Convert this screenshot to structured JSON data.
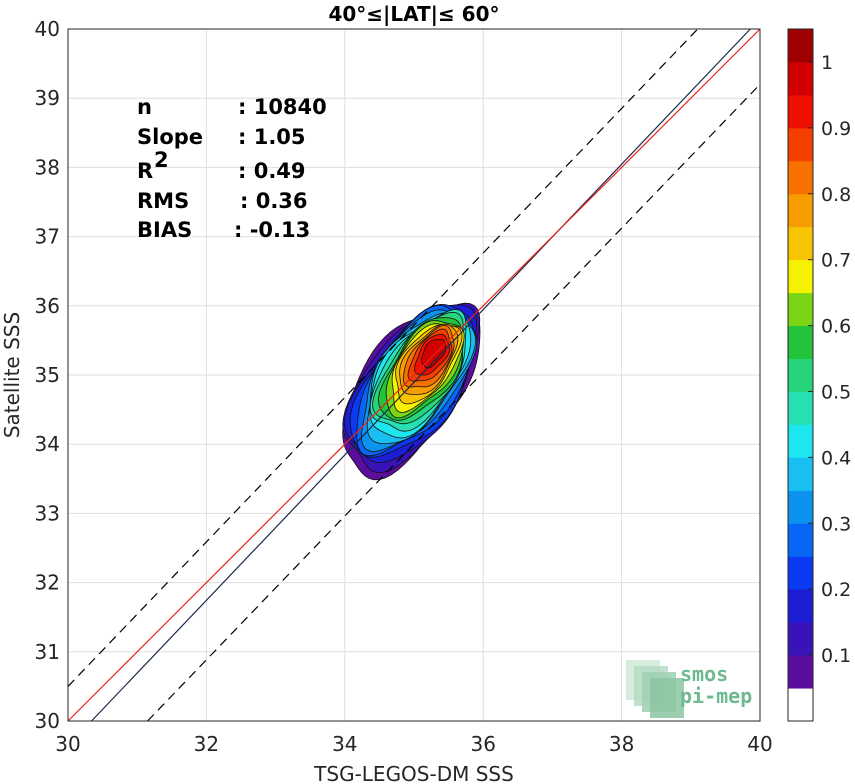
{
  "chart_data": {
    "type": "contour-scatter",
    "title": "40°≤|LAT|≤ 60°",
    "xlabel": "TSG-LEGOS-DM SSS",
    "ylabel": "Satellite SSS",
    "xlim": [
      30,
      40
    ],
    "ylim": [
      30,
      40
    ],
    "xticks": [
      "30",
      "32",
      "34",
      "36",
      "38",
      "40"
    ],
    "yticks": [
      "30",
      "31",
      "32",
      "33",
      "34",
      "35",
      "36",
      "37",
      "38",
      "39",
      "40"
    ],
    "grid": true,
    "stats": [
      {
        "label": "n",
        "sep": ":",
        "value": "10840"
      },
      {
        "label": "Slope",
        "sep": ":",
        "value": "1.05"
      },
      {
        "label": "R",
        "sup": "2",
        "sep": ":",
        "value": "0.49"
      },
      {
        "label": "RMS",
        "sep": ":",
        "value": "0.36"
      },
      {
        "label": "BIAS",
        "sep": ":",
        "value": "-0.13"
      }
    ],
    "lines": {
      "identity": {
        "color": "#e8221d",
        "points": [
          [
            30,
            30
          ],
          [
            40,
            40
          ]
        ]
      },
      "regression": {
        "color": "#1a2a4a",
        "slope": 1.05,
        "points": [
          [
            30.34,
            30
          ],
          [
            39.86,
            40
          ]
        ]
      },
      "bounds": {
        "color": "#000000",
        "dash": true,
        "offset": 0.8,
        "upper": [
          [
            30,
            30.5
          ],
          [
            39.1,
            40
          ]
        ],
        "lower": [
          [
            31.15,
            30
          ],
          [
            40,
            39.2
          ]
        ]
      }
    },
    "density": {
      "peak": [
        35.3,
        35.35
      ],
      "levels": [
        0.05,
        0.1,
        0.15,
        0.2,
        0.25,
        0.3,
        0.35,
        0.4,
        0.45,
        0.5,
        0.55,
        0.6,
        0.65,
        0.7,
        0.75,
        0.8,
        0.85,
        0.9,
        0.95
      ]
    },
    "colorbar": {
      "ticks": [
        "0.1",
        "0.2",
        "0.3",
        "0.4",
        "0.5",
        "0.6",
        "0.7",
        "0.8",
        "0.9",
        "1"
      ],
      "colors": [
        "#ffffff",
        "#5b0e9e",
        "#3a13b8",
        "#1d1dd4",
        "#0a3bf2",
        "#0766f5",
        "#0c93f0",
        "#19bff0",
        "#1de6ef",
        "#26e0b4",
        "#27d47a",
        "#23c33a",
        "#7bd414",
        "#f5f200",
        "#f8c400",
        "#f89d00",
        "#f77100",
        "#f53f00",
        "#ee0f00",
        "#d20000",
        "#a00000"
      ]
    },
    "logo": {
      "line1": "smos",
      "line2": "pi-mep"
    }
  }
}
